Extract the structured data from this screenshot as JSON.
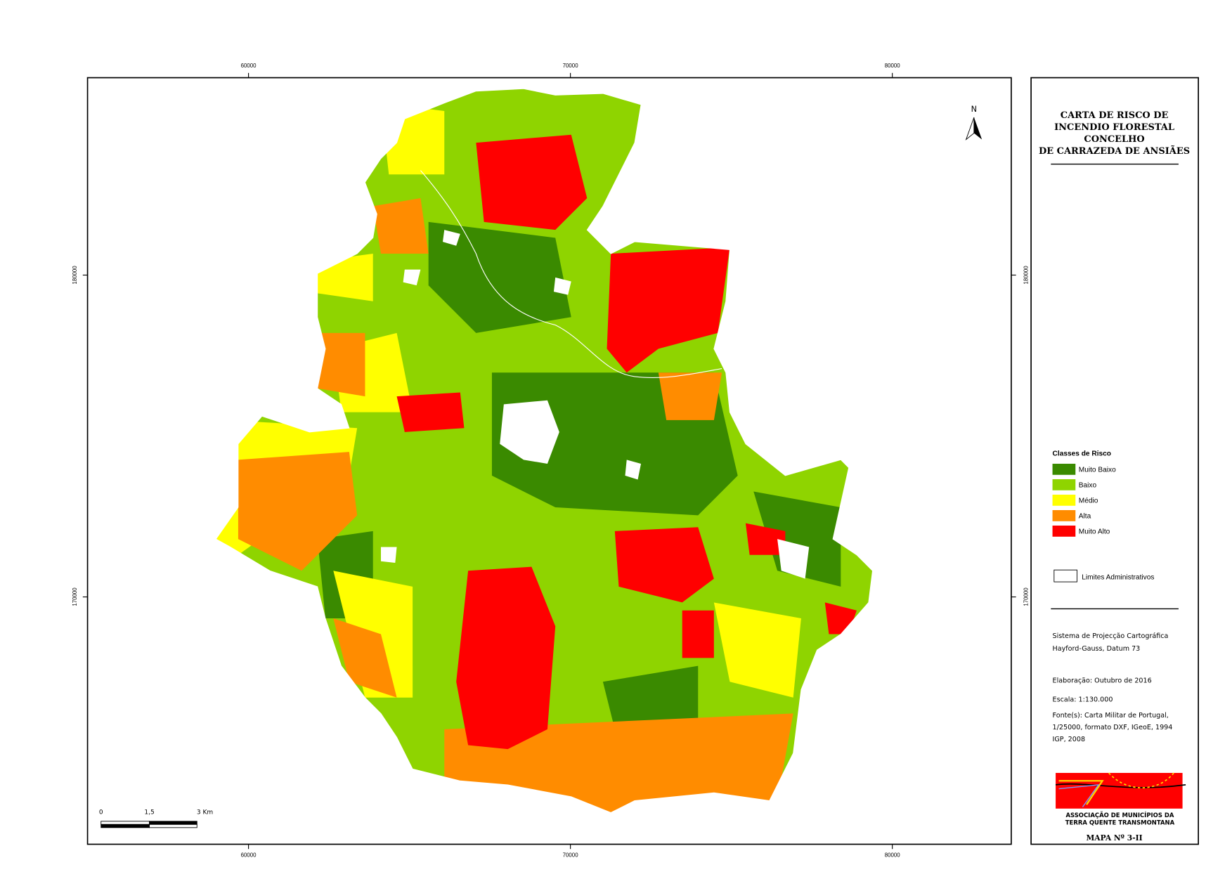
{
  "map": {
    "title_lines": [
      "CARTA DE RISCO DE",
      "INCENDIO FLORESTAL",
      "CONCELHO",
      "DE CARRAZEDA DE ANSIÃES"
    ],
    "x_grid": [
      60000,
      70000,
      80000
    ],
    "y_grid": [
      180000,
      170000
    ],
    "north": "N",
    "scale_bar": [
      "0",
      "1,5",
      "3 Km"
    ],
    "legend": {
      "title": "Classes de Risco",
      "classes": [
        {
          "name": "Muito Baixo",
          "color": "#3a8a00"
        },
        {
          "name": "Baixo",
          "color": "#8fd400"
        },
        {
          "name": "Médio",
          "color": "#ffff00"
        },
        {
          "name": "Alta",
          "color": "#ff8c00"
        },
        {
          "name": "Muito Alto",
          "color": "#ff0000"
        }
      ],
      "boundary": "Limites Administrativos"
    },
    "notes": [
      "Sistema de Projecção Cartográfica",
      "Hayford-Gauss, Datum 73",
      "Elaboração: Outubro de 2016",
      "Escala: 1:130.000",
      "Fonte(s): Carta Militar de Portugal,",
      "1/25000, formato DXF, IGeoE, 1994",
      "IGP, 2008"
    ],
    "logo": [
      "ASSOCIAÇÃO DE MUNICÍPIOS DA",
      "TERRA QUENTE TRANSMONTANA"
    ],
    "map_number": "MAPA Nº 3-II"
  }
}
